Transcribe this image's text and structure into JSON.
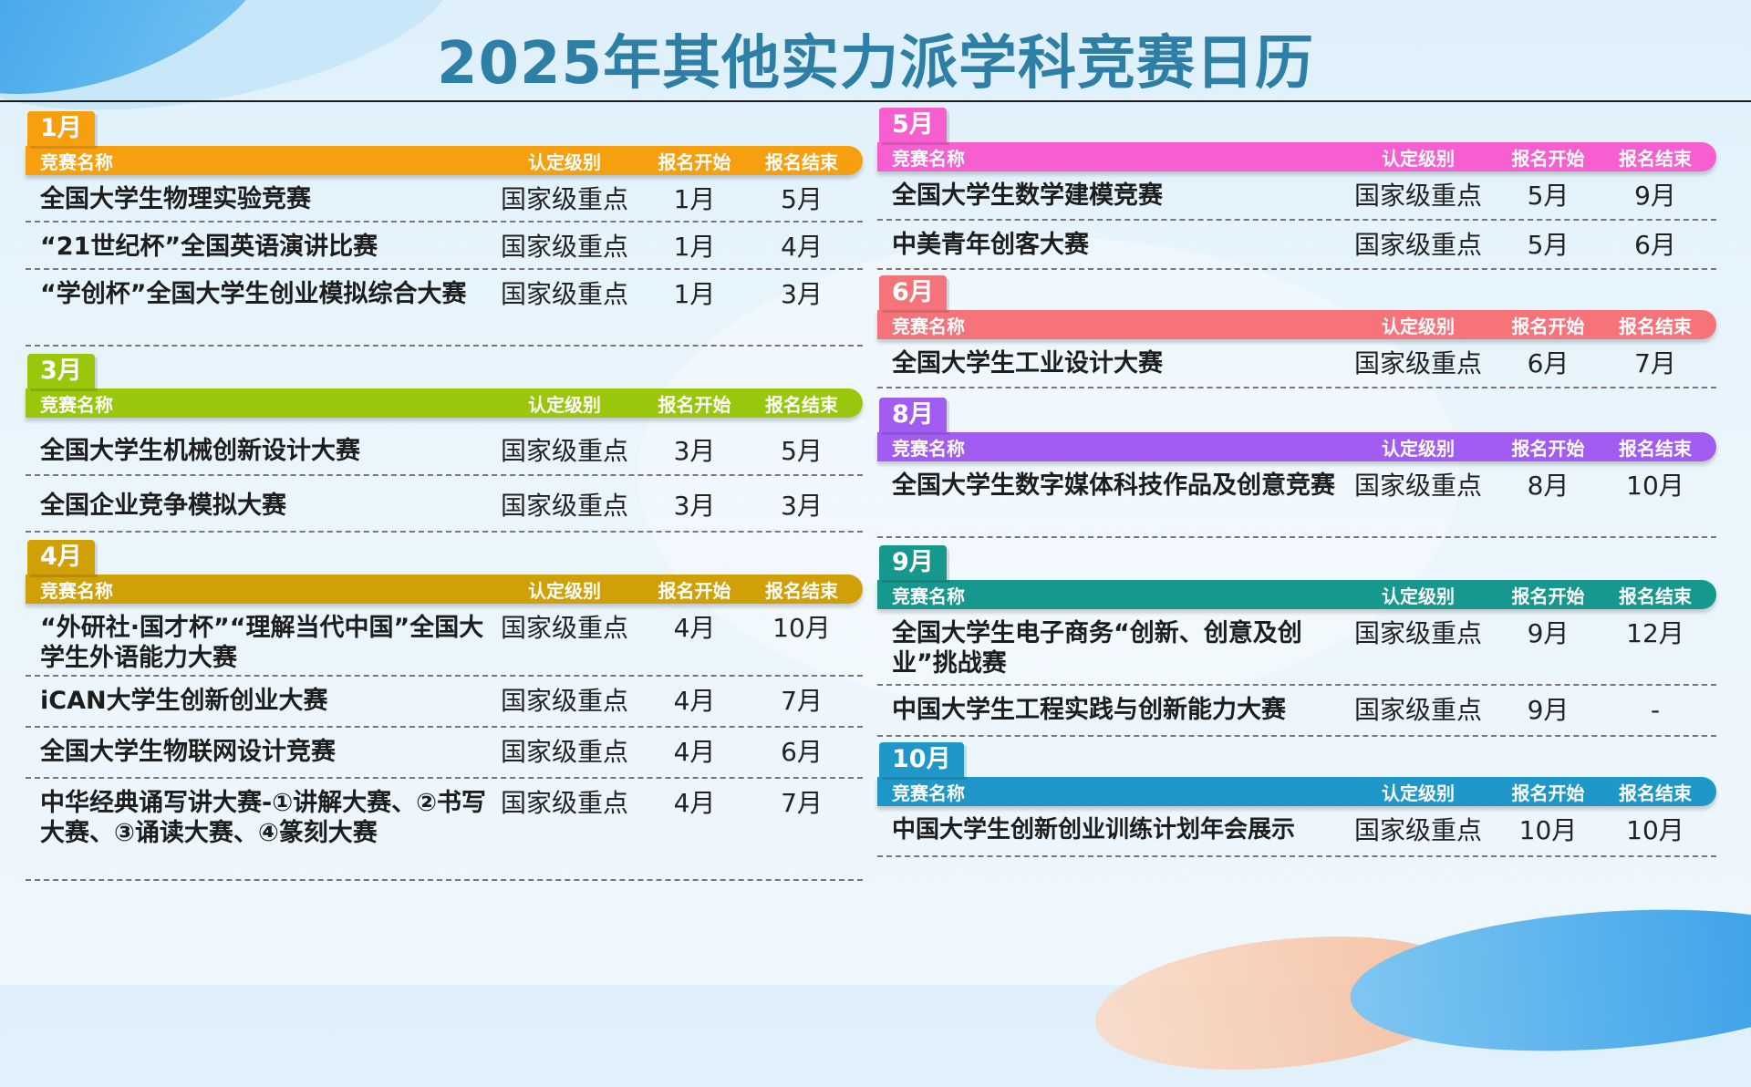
{
  "title": "2025年其他实力派学科竞赛日历",
  "header": {
    "name": "竞赛名称",
    "level": "认定级别",
    "start": "报名开始",
    "end": "报名结束"
  },
  "colors": {
    "title": "#2e7fa6",
    "jan": "#f7a00f",
    "mar": "#99c70b",
    "apr": "#d0a006",
    "may": "#f75fd0",
    "jun": "#f7737a",
    "aug": "#a25cf2",
    "sep": "#17988f",
    "oct": "#1f97c8"
  },
  "left": [
    {
      "month": "1月",
      "rows": [
        {
          "name": "全国大学生物理实验竞赛",
          "level": "国家级重点",
          "start": "1月",
          "end": "5月"
        },
        {
          "name": "“21世纪杯”全国英语演讲比赛",
          "level": "国家级重点",
          "start": "1月",
          "end": "4月"
        },
        {
          "name": "“学创杯”全国大学生创业模拟综合大赛",
          "level": "国家级重点",
          "start": "1月",
          "end": "3月"
        }
      ]
    },
    {
      "month": "3月",
      "rows": [
        {
          "name": "全国大学生机械创新设计大赛",
          "level": "国家级重点",
          "start": "3月",
          "end": "5月"
        },
        {
          "name": "全国企业竞争模拟大赛",
          "level": "国家级重点",
          "start": "3月",
          "end": "3月"
        }
      ]
    },
    {
      "month": "4月",
      "rows": [
        {
          "name": "“外研社·国才杯”“理解当代中国”全国大学生外语能力大赛",
          "level": "国家级重点",
          "start": "4月",
          "end": "10月"
        },
        {
          "name": "iCAN大学生创新创业大赛",
          "level": "国家级重点",
          "start": "4月",
          "end": "7月"
        },
        {
          "name": "全国大学生物联网设计竞赛",
          "level": "国家级重点",
          "start": "4月",
          "end": "6月"
        },
        {
          "name": "中华经典诵写讲大赛-①讲解大赛、②书写大赛、③诵读大赛、④篆刻大赛",
          "level": "国家级重点",
          "start": "4月",
          "end": "7月"
        }
      ]
    }
  ],
  "right": [
    {
      "month": "5月",
      "rows": [
        {
          "name": "全国大学生数学建模竞赛",
          "level": "国家级重点",
          "start": "5月",
          "end": "9月"
        },
        {
          "name": "中美青年创客大赛",
          "level": "国家级重点",
          "start": "5月",
          "end": "6月"
        }
      ]
    },
    {
      "month": "6月",
      "rows": [
        {
          "name": "全国大学生工业设计大赛",
          "level": "国家级重点",
          "start": "6月",
          "end": "7月"
        }
      ]
    },
    {
      "month": "8月",
      "rows": [
        {
          "name": "全国大学生数字媒体科技作品及创意竞赛",
          "level": "国家级重点",
          "start": "8月",
          "end": "10月"
        }
      ]
    },
    {
      "month": "9月",
      "rows": [
        {
          "name": "全国大学生电子商务“创新、创意及创业”挑战赛",
          "level": "国家级重点",
          "start": "9月",
          "end": "12月"
        },
        {
          "name": "中国大学生工程实践与创新能力大赛",
          "level": "国家级重点",
          "start": "9月",
          "end": "-"
        }
      ]
    },
    {
      "month": "10月",
      "rows": [
        {
          "name": "中国大学生创新创业训练计划年会展示",
          "level": "国家级重点",
          "start": "10月",
          "end": "10月"
        }
      ]
    }
  ]
}
